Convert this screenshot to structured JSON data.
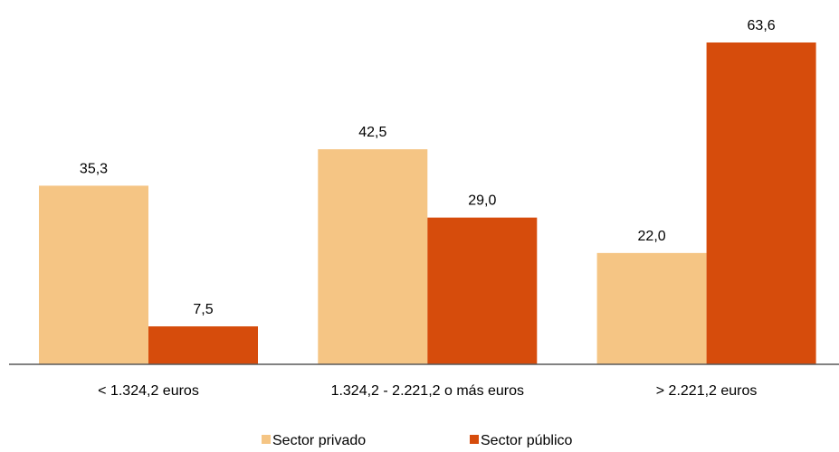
{
  "chart_data": {
    "type": "bar",
    "title": "",
    "xlabel": "",
    "ylabel": "",
    "ylim": [
      0,
      63.6
    ],
    "grid": false,
    "legend_position": "bottom",
    "categories": [
      "< 1.324,2 euros",
      "1.324,2 - 2.221,2 o más euros",
      "> 2.221,2 euros"
    ],
    "series": [
      {
        "name": "Sector privado",
        "color": "#F5C584",
        "values": [
          35.3,
          42.5,
          22.0
        ],
        "labels": [
          "35,3",
          "42,5",
          "22,0"
        ]
      },
      {
        "name": "Sector público",
        "color": "#D64C0C",
        "values": [
          7.5,
          29.0,
          63.6
        ],
        "labels": [
          "7,5",
          "29,0",
          "63,6"
        ]
      }
    ]
  }
}
